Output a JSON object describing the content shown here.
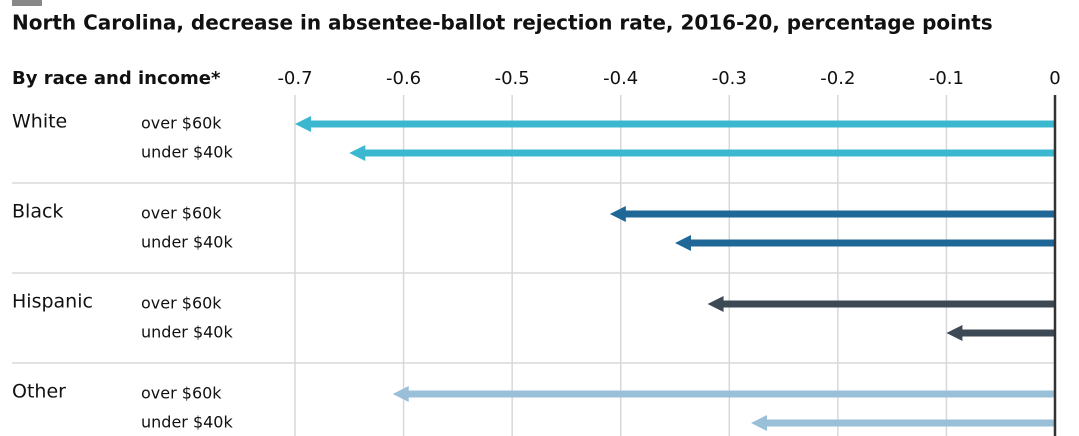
{
  "chart_data": {
    "type": "bar",
    "orientation": "horizontal",
    "title": "North Carolina, decrease in absentee-ballot rejection rate, 2016-20, percentage points",
    "y_label": "By race and income*",
    "categories": [
      "White",
      "Black",
      "Hispanic",
      "Other"
    ],
    "colors": [
      "#3bb8d0",
      "#1f6796",
      "#3d4a55",
      "#9ac0d9"
    ],
    "series": [
      {
        "name": "over $60k",
        "values": [
          -0.7,
          -0.41,
          -0.32,
          -0.61
        ]
      },
      {
        "name": "under $40k",
        "values": [
          -0.65,
          -0.35,
          -0.1,
          -0.28
        ]
      }
    ],
    "xlim": [
      -0.7,
      0
    ],
    "xticks": [
      -0.7,
      -0.6,
      -0.5,
      -0.4,
      -0.3,
      -0.2,
      -0.1,
      0
    ],
    "grid": true
  }
}
